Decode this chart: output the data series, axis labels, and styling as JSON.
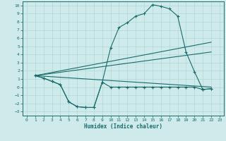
{
  "xlabel": "Humidex (Indice chaleur)",
  "bg_color": "#ceeaea",
  "line_color": "#1a6b6b",
  "grid_color": "#b0d8d8",
  "xlim": [
    -0.5,
    23.5
  ],
  "ylim": [
    -3.5,
    10.5
  ],
  "xticks": [
    0,
    1,
    2,
    3,
    4,
    5,
    6,
    7,
    8,
    9,
    10,
    11,
    12,
    13,
    14,
    15,
    16,
    17,
    18,
    19,
    20,
    21,
    22,
    23
  ],
  "yticks": [
    -3,
    -2,
    -1,
    0,
    1,
    2,
    3,
    4,
    5,
    6,
    7,
    8,
    9,
    10
  ],
  "curve_x": [
    1,
    2,
    3,
    4,
    5,
    6,
    7,
    8,
    9,
    10,
    11,
    12,
    13,
    14,
    15,
    16,
    17,
    18,
    19,
    20,
    21,
    22
  ],
  "curve_y": [
    1.4,
    1.1,
    0.7,
    0.3,
    -1.8,
    -2.4,
    -2.5,
    -2.5,
    0.6,
    4.8,
    7.3,
    7.9,
    8.7,
    9.0,
    10.1,
    9.9,
    9.6,
    8.7,
    4.3,
    1.9,
    -0.3,
    -0.2
  ],
  "flat_x": [
    1,
    2,
    3,
    4,
    5,
    6,
    7,
    8,
    9,
    10,
    11,
    12,
    13,
    14,
    15,
    16,
    17,
    18,
    19,
    20,
    21,
    22
  ],
  "flat_y": [
    1.4,
    1.1,
    0.7,
    0.3,
    -1.8,
    -2.4,
    -2.5,
    -2.5,
    0.6,
    0.0,
    0.0,
    0.0,
    0.0,
    0.0,
    0.0,
    0.0,
    0.0,
    0.0,
    0.0,
    0.0,
    -0.3,
    -0.2
  ],
  "line1_x": [
    1,
    22
  ],
  "line1_y": [
    1.4,
    5.5
  ],
  "line2_x": [
    1,
    22
  ],
  "line2_y": [
    1.4,
    4.3
  ],
  "line3_x": [
    1,
    22
  ],
  "line3_y": [
    1.4,
    0.0
  ]
}
